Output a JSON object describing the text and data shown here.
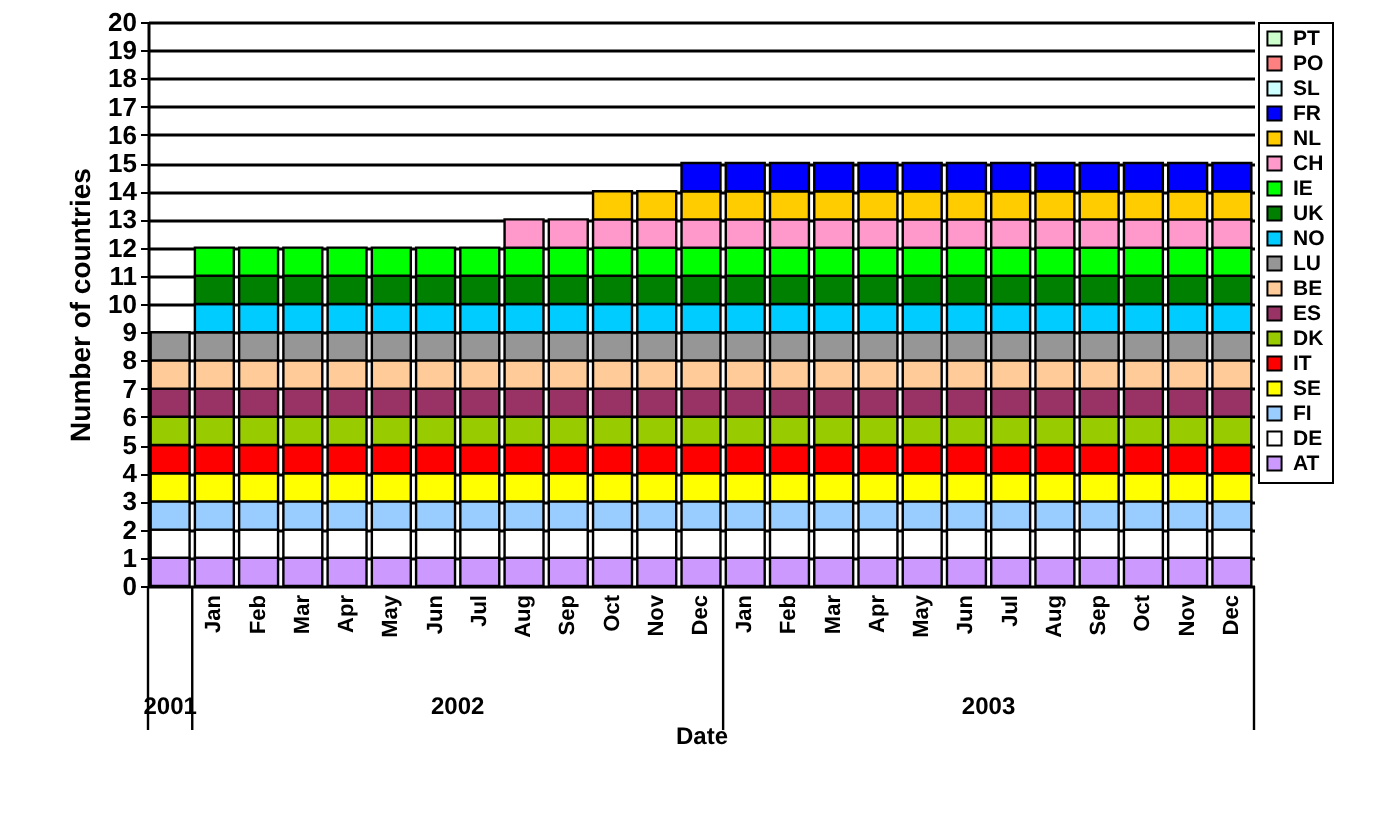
{
  "chart_data": {
    "type": "bar",
    "stacked": true,
    "ylabel": "Number of countries",
    "xlabel": "Date",
    "categories": [
      null,
      "Jan",
      "Feb",
      "Mar",
      "Apr",
      "May",
      "Jun",
      "Jul",
      "Aug",
      "Sep",
      "Oct",
      "Nov",
      "Dec",
      "Jan",
      "Feb",
      "Mar",
      "Apr",
      "May",
      "Jun",
      "Jul",
      "Aug",
      "Sep",
      "Oct",
      "Nov",
      "Dec"
    ],
    "annotations": [
      "2001",
      "2002",
      "2003"
    ],
    "ylim": [
      0,
      20
    ],
    "yticks": [
      0,
      1,
      2,
      3,
      4,
      5,
      6,
      7,
      8,
      9,
      10,
      11,
      12,
      13,
      14,
      15,
      16,
      17,
      18,
      19,
      20
    ],
    "grid": "y",
    "legend": "right",
    "series": [
      {
        "name": "AT",
        "color": "#cc99ff",
        "values": [
          1,
          1,
          1,
          1,
          1,
          1,
          1,
          1,
          1,
          1,
          1,
          1,
          1,
          1,
          1,
          1,
          1,
          1,
          1,
          1,
          1,
          1,
          1,
          1,
          1
        ]
      },
      {
        "name": "DE",
        "color": "#ffffff",
        "values": [
          1,
          1,
          1,
          1,
          1,
          1,
          1,
          1,
          1,
          1,
          1,
          1,
          1,
          1,
          1,
          1,
          1,
          1,
          1,
          1,
          1,
          1,
          1,
          1,
          1
        ]
      },
      {
        "name": "FI",
        "color": "#99ccff",
        "values": [
          1,
          1,
          1,
          1,
          1,
          1,
          1,
          1,
          1,
          1,
          1,
          1,
          1,
          1,
          1,
          1,
          1,
          1,
          1,
          1,
          1,
          1,
          1,
          1,
          1
        ]
      },
      {
        "name": "SE",
        "color": "#ffff00",
        "values": [
          1,
          1,
          1,
          1,
          1,
          1,
          1,
          1,
          1,
          1,
          1,
          1,
          1,
          1,
          1,
          1,
          1,
          1,
          1,
          1,
          1,
          1,
          1,
          1,
          1
        ]
      },
      {
        "name": "IT",
        "color": "#ff0000",
        "values": [
          1,
          1,
          1,
          1,
          1,
          1,
          1,
          1,
          1,
          1,
          1,
          1,
          1,
          1,
          1,
          1,
          1,
          1,
          1,
          1,
          1,
          1,
          1,
          1,
          1
        ]
      },
      {
        "name": "DK",
        "color": "#99cc00",
        "values": [
          1,
          1,
          1,
          1,
          1,
          1,
          1,
          1,
          1,
          1,
          1,
          1,
          1,
          1,
          1,
          1,
          1,
          1,
          1,
          1,
          1,
          1,
          1,
          1,
          1
        ]
      },
      {
        "name": "ES",
        "color": "#993366",
        "values": [
          1,
          1,
          1,
          1,
          1,
          1,
          1,
          1,
          1,
          1,
          1,
          1,
          1,
          1,
          1,
          1,
          1,
          1,
          1,
          1,
          1,
          1,
          1,
          1,
          1
        ]
      },
      {
        "name": "BE",
        "color": "#ffcc99",
        "values": [
          1,
          1,
          1,
          1,
          1,
          1,
          1,
          1,
          1,
          1,
          1,
          1,
          1,
          1,
          1,
          1,
          1,
          1,
          1,
          1,
          1,
          1,
          1,
          1,
          1
        ]
      },
      {
        "name": "LU",
        "color": "#969696",
        "values": [
          1,
          1,
          1,
          1,
          1,
          1,
          1,
          1,
          1,
          1,
          1,
          1,
          1,
          1,
          1,
          1,
          1,
          1,
          1,
          1,
          1,
          1,
          1,
          1,
          1
        ]
      },
      {
        "name": "NO",
        "color": "#00ccff",
        "values": [
          null,
          1,
          1,
          1,
          1,
          1,
          1,
          1,
          1,
          1,
          1,
          1,
          1,
          1,
          1,
          1,
          1,
          1,
          1,
          1,
          1,
          1,
          1,
          1,
          1
        ]
      },
      {
        "name": "UK",
        "color": "#008000",
        "values": [
          null,
          1,
          1,
          1,
          1,
          1,
          1,
          1,
          1,
          1,
          1,
          1,
          1,
          1,
          1,
          1,
          1,
          1,
          1,
          1,
          1,
          1,
          1,
          1,
          1
        ]
      },
      {
        "name": "IE",
        "color": "#00ff00",
        "values": [
          null,
          1,
          1,
          1,
          1,
          1,
          1,
          1,
          1,
          1,
          1,
          1,
          1,
          1,
          1,
          1,
          1,
          1,
          1,
          1,
          1,
          1,
          1,
          1,
          1
        ]
      },
      {
        "name": "CH",
        "color": "#ff99cc",
        "values": [
          null,
          null,
          null,
          null,
          null,
          null,
          null,
          null,
          1,
          1,
          1,
          1,
          1,
          1,
          1,
          1,
          1,
          1,
          1,
          1,
          1,
          1,
          1,
          1,
          1
        ]
      },
      {
        "name": "NL",
        "color": "#ffcc00",
        "values": [
          null,
          null,
          null,
          null,
          null,
          null,
          null,
          null,
          null,
          null,
          1,
          1,
          1,
          1,
          1,
          1,
          1,
          1,
          1,
          1,
          1,
          1,
          1,
          1,
          1
        ]
      },
      {
        "name": "FR",
        "color": "#0000ff",
        "values": [
          null,
          null,
          null,
          null,
          null,
          null,
          null,
          null,
          null,
          null,
          null,
          null,
          1,
          1,
          1,
          1,
          1,
          1,
          1,
          1,
          1,
          1,
          1,
          1,
          1
        ]
      },
      {
        "name": "SL",
        "color": "#ccffff",
        "values": [
          null,
          null,
          null,
          null,
          null,
          null,
          null,
          null,
          null,
          null,
          null,
          null,
          null,
          null,
          null,
          null,
          null,
          null,
          null,
          null,
          null,
          null,
          null,
          null,
          null
        ]
      },
      {
        "name": "PO",
        "color": "#ff8080",
        "values": [
          null,
          null,
          null,
          null,
          null,
          null,
          null,
          null,
          null,
          null,
          null,
          null,
          null,
          null,
          null,
          null,
          null,
          null,
          null,
          null,
          null,
          null,
          null,
          null,
          null
        ]
      },
      {
        "name": "PT",
        "color": "#ccffcc",
        "values": [
          null,
          null,
          null,
          null,
          null,
          null,
          null,
          null,
          null,
          null,
          null,
          null,
          null,
          null,
          null,
          null,
          null,
          null,
          null,
          null,
          null,
          null,
          null,
          null,
          null
        ]
      }
    ]
  }
}
